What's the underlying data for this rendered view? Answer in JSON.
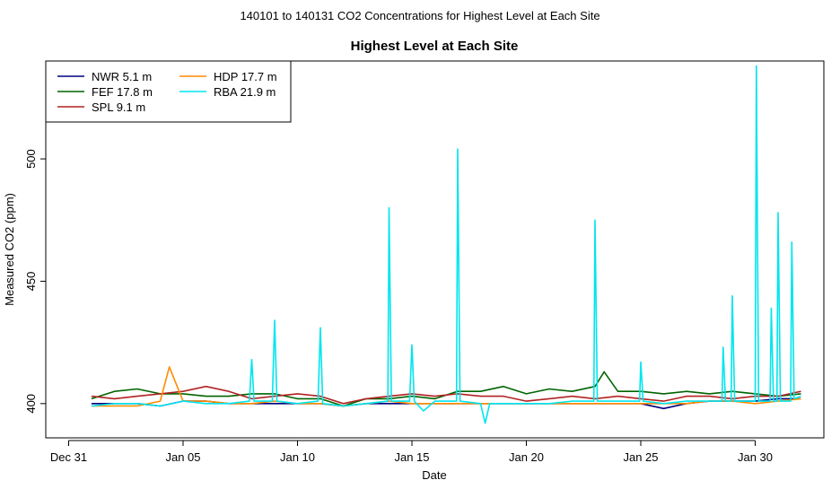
{
  "window_title": "140101  to  140131 CO2 Concentrations for Highest Level at Each Site",
  "chart_data": {
    "type": "line",
    "title": "Highest Level at Each Site",
    "xlabel": "Date",
    "ylabel": "Measured CO2 (ppm)",
    "xlim": [
      "2013-12-30",
      "2014-02-02"
    ],
    "ylim": [
      386,
      540
    ],
    "x_ticks": [
      {
        "date": "2013-12-31",
        "label": "Dec 31"
      },
      {
        "date": "2014-01-05",
        "label": "Jan 05"
      },
      {
        "date": "2014-01-10",
        "label": "Jan 10"
      },
      {
        "date": "2014-01-15",
        "label": "Jan 15"
      },
      {
        "date": "2014-01-20",
        "label": "Jan 20"
      },
      {
        "date": "2014-01-25",
        "label": "Jan 25"
      },
      {
        "date": "2014-01-30",
        "label": "Jan 30"
      }
    ],
    "y_ticks": [
      400,
      450,
      500
    ],
    "grid": false,
    "legend_position": "top-left",
    "legend": [
      {
        "series": "NWR",
        "label": "NWR   5.1 m"
      },
      {
        "series": "FEF",
        "label": "FEF   17.8 m"
      },
      {
        "series": "SPL",
        "label": "SPL   9.1 m"
      },
      {
        "series": "HDP",
        "label": "HDP   17.7 m"
      },
      {
        "series": "RBA",
        "label": "RBA   21.9 m"
      }
    ],
    "series": [
      {
        "name": "NWR",
        "color": "#000080",
        "points": [
          [
            "2014-01-01",
            400
          ],
          [
            "2014-01-02",
            400
          ],
          [
            "2014-01-03",
            400
          ],
          [
            "2014-01-04",
            399
          ],
          [
            "2014-01-05",
            401
          ],
          [
            "2014-01-06",
            401
          ],
          [
            "2014-01-07",
            400
          ],
          [
            "2014-01-08",
            400
          ],
          [
            "2014-01-09",
            400
          ],
          [
            "2014-01-10",
            400
          ],
          [
            "2014-01-11",
            400
          ],
          [
            "2014-01-12",
            399
          ],
          [
            "2014-01-13",
            400
          ],
          [
            "2014-01-14",
            400
          ],
          [
            "2014-01-15",
            400
          ],
          [
            "2014-01-16",
            400
          ],
          [
            "2014-01-17",
            400
          ],
          [
            "2014-01-18",
            400
          ],
          [
            "2014-01-19",
            400
          ],
          [
            "2014-01-20",
            400
          ],
          [
            "2014-01-21",
            400
          ],
          [
            "2014-01-22",
            400
          ],
          [
            "2014-01-23",
            400
          ],
          [
            "2014-01-24",
            400
          ],
          [
            "2014-01-25",
            400
          ],
          [
            "2014-01-26",
            398
          ],
          [
            "2014-01-27",
            400
          ],
          [
            "2014-01-28",
            401
          ],
          [
            "2014-01-29",
            401
          ],
          [
            "2014-01-30",
            401
          ],
          [
            "2014-01-31",
            402
          ],
          [
            "2014-02-01",
            402
          ]
        ]
      },
      {
        "name": "FEF",
        "color": "#006400",
        "points": [
          [
            "2014-01-01",
            402
          ],
          [
            "2014-01-02",
            405
          ],
          [
            "2014-01-03",
            406
          ],
          [
            "2014-01-04",
            404
          ],
          [
            "2014-01-05",
            404
          ],
          [
            "2014-01-06",
            403
          ],
          [
            "2014-01-07",
            403
          ],
          [
            "2014-01-08",
            404
          ],
          [
            "2014-01-09",
            404
          ],
          [
            "2014-01-10",
            402
          ],
          [
            "2014-01-11",
            402
          ],
          [
            "2014-01-12",
            399
          ],
          [
            "2014-01-13",
            402
          ],
          [
            "2014-01-14",
            402
          ],
          [
            "2014-01-15",
            403
          ],
          [
            "2014-01-16",
            402
          ],
          [
            "2014-01-17",
            405
          ],
          [
            "2014-01-18",
            405
          ],
          [
            "2014-01-19",
            407
          ],
          [
            "2014-01-20",
            404
          ],
          [
            "2014-01-21",
            406
          ],
          [
            "2014-01-22",
            405
          ],
          [
            "2014-01-23",
            407
          ],
          [
            "2014-01-23.4",
            413
          ],
          [
            "2014-01-24",
            405
          ],
          [
            "2014-01-25",
            405
          ],
          [
            "2014-01-26",
            404
          ],
          [
            "2014-01-27",
            405
          ],
          [
            "2014-01-28",
            404
          ],
          [
            "2014-01-29",
            405
          ],
          [
            "2014-01-30",
            404
          ],
          [
            "2014-01-31",
            403
          ],
          [
            "2014-02-01",
            404
          ]
        ]
      },
      {
        "name": "SPL",
        "color": "#b22222",
        "points": [
          [
            "2014-01-01",
            403
          ],
          [
            "2014-01-02",
            402
          ],
          [
            "2014-01-03",
            403
          ],
          [
            "2014-01-04",
            404
          ],
          [
            "2014-01-05",
            405
          ],
          [
            "2014-01-06",
            407
          ],
          [
            "2014-01-07",
            405
          ],
          [
            "2014-01-08",
            402
          ],
          [
            "2014-01-09",
            403
          ],
          [
            "2014-01-10",
            404
          ],
          [
            "2014-01-11",
            403
          ],
          [
            "2014-01-12",
            400
          ],
          [
            "2014-01-13",
            402
          ],
          [
            "2014-01-14",
            403
          ],
          [
            "2014-01-15",
            404
          ],
          [
            "2014-01-16",
            403
          ],
          [
            "2014-01-17",
            404
          ],
          [
            "2014-01-18",
            403
          ],
          [
            "2014-01-19",
            403
          ],
          [
            "2014-01-20",
            401
          ],
          [
            "2014-01-21",
            402
          ],
          [
            "2014-01-22",
            403
          ],
          [
            "2014-01-23",
            402
          ],
          [
            "2014-01-24",
            403
          ],
          [
            "2014-01-25",
            402
          ],
          [
            "2014-01-26",
            401
          ],
          [
            "2014-01-27",
            403
          ],
          [
            "2014-01-28",
            403
          ],
          [
            "2014-01-29",
            402
          ],
          [
            "2014-01-30",
            403
          ],
          [
            "2014-01-31",
            403
          ],
          [
            "2014-02-01",
            405
          ]
        ]
      },
      {
        "name": "HDP",
        "color": "#ff8c00",
        "points": [
          [
            "2014-01-01",
            399
          ],
          [
            "2014-01-02",
            399
          ],
          [
            "2014-01-03",
            399
          ],
          [
            "2014-01-04",
            401
          ],
          [
            "2014-01-04.4",
            415
          ],
          [
            "2014-01-05",
            401
          ],
          [
            "2014-01-06",
            401
          ],
          [
            "2014-01-07",
            400
          ],
          [
            "2014-01-08",
            400
          ],
          [
            "2014-01-09",
            401
          ],
          [
            "2014-01-10",
            400
          ],
          [
            "2014-01-11",
            400
          ],
          [
            "2014-01-12",
            399
          ],
          [
            "2014-01-13",
            400
          ],
          [
            "2014-01-14",
            401
          ],
          [
            "2014-01-15",
            400
          ],
          [
            "2014-01-16",
            400
          ],
          [
            "2014-01-17",
            400
          ],
          [
            "2014-01-18",
            400
          ],
          [
            "2014-01-19",
            400
          ],
          [
            "2014-01-20",
            400
          ],
          [
            "2014-01-21",
            400
          ],
          [
            "2014-01-22",
            400
          ],
          [
            "2014-01-23",
            400
          ],
          [
            "2014-01-24",
            400
          ],
          [
            "2014-01-25",
            400
          ],
          [
            "2014-01-26",
            400
          ],
          [
            "2014-01-27",
            400
          ],
          [
            "2014-01-28",
            401
          ],
          [
            "2014-01-29",
            401
          ],
          [
            "2014-01-30",
            400
          ],
          [
            "2014-01-31",
            401
          ],
          [
            "2014-02-01",
            402
          ]
        ]
      },
      {
        "name": "RBA",
        "color": "#00e5ee",
        "points": [
          [
            "2014-01-01",
            399
          ],
          [
            "2014-01-02",
            400
          ],
          [
            "2014-01-03",
            400
          ],
          [
            "2014-01-04",
            399
          ],
          [
            "2014-01-05",
            401
          ],
          [
            "2014-01-06",
            400
          ],
          [
            "2014-01-07",
            400
          ],
          [
            "2014-01-07.9",
            401
          ],
          [
            "2014-01-08",
            418
          ],
          [
            "2014-01-08.1",
            401
          ],
          [
            "2014-01-08.9",
            401
          ],
          [
            "2014-01-09",
            434
          ],
          [
            "2014-01-09.1",
            401
          ],
          [
            "2014-01-10",
            400
          ],
          [
            "2014-01-10.9",
            401
          ],
          [
            "2014-01-11",
            431
          ],
          [
            "2014-01-11.1",
            400
          ],
          [
            "2014-01-12",
            399
          ],
          [
            "2014-01-13",
            400
          ],
          [
            "2014-01-13.95",
            401
          ],
          [
            "2014-01-14",
            480
          ],
          [
            "2014-01-14.1",
            401
          ],
          [
            "2014-01-14.9",
            401
          ],
          [
            "2014-01-15",
            424
          ],
          [
            "2014-01-15.1",
            401
          ],
          [
            "2014-01-15.5",
            397
          ],
          [
            "2014-01-16",
            401
          ],
          [
            "2014-01-16.95",
            401
          ],
          [
            "2014-01-17",
            504
          ],
          [
            "2014-01-17.1",
            401
          ],
          [
            "2014-01-18",
            400
          ],
          [
            "2014-01-18.2",
            392
          ],
          [
            "2014-01-18.4",
            400
          ],
          [
            "2014-01-19",
            400
          ],
          [
            "2014-01-20",
            400
          ],
          [
            "2014-01-21",
            400
          ],
          [
            "2014-01-22",
            401
          ],
          [
            "2014-01-22.95",
            401
          ],
          [
            "2014-01-23",
            475
          ],
          [
            "2014-01-23.1",
            401
          ],
          [
            "2014-01-24",
            401
          ],
          [
            "2014-01-24.95",
            401
          ],
          [
            "2014-01-25",
            417
          ],
          [
            "2014-01-25.1",
            401
          ],
          [
            "2014-01-26",
            400
          ],
          [
            "2014-01-27",
            401
          ],
          [
            "2014-01-28",
            401
          ],
          [
            "2014-01-28.55",
            401
          ],
          [
            "2014-01-28.6",
            423
          ],
          [
            "2014-01-28.7",
            401
          ],
          [
            "2014-01-28.95",
            401
          ],
          [
            "2014-01-29",
            444
          ],
          [
            "2014-01-29.1",
            401
          ],
          [
            "2014-01-30",
            401
          ],
          [
            "2014-01-30.05",
            538
          ],
          [
            "2014-01-30.15",
            401
          ],
          [
            "2014-01-30.65",
            401
          ],
          [
            "2014-01-30.7",
            439
          ],
          [
            "2014-01-30.8",
            401
          ],
          [
            "2014-01-30.95",
            401
          ],
          [
            "2014-01-31",
            478
          ],
          [
            "2014-01-31.1",
            401
          ],
          [
            "2014-01-31.55",
            401
          ],
          [
            "2014-01-31.6",
            466
          ],
          [
            "2014-01-31.7",
            402
          ],
          [
            "2014-02-01",
            403
          ]
        ]
      }
    ]
  }
}
